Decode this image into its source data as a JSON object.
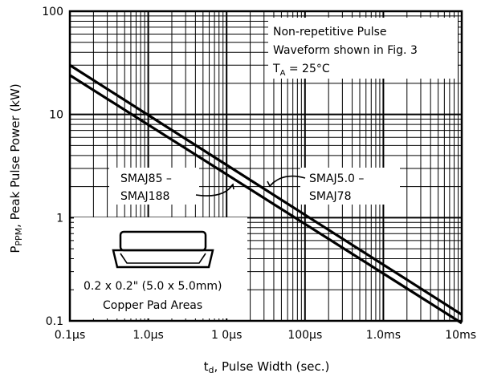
{
  "chart_data": {
    "type": "line",
    "title": "",
    "xlabel_main": "t",
    "xlabel_sub": "d",
    "xlabel_rest": ",   Pulse Width (sec.)",
    "ylabel_main": "P",
    "ylabel_sub": "PPM",
    "ylabel_rest": ",   Peak Pulse Power (kW)",
    "x_scale": "log",
    "y_scale": "log",
    "x_ticks": [
      {
        "value": 1e-07,
        "label": "0.1µs"
      },
      {
        "value": 1e-06,
        "label": "1.0µs"
      },
      {
        "value": 1e-05,
        "label": "1 0µs"
      },
      {
        "value": 0.0001,
        "label": "100µs"
      },
      {
        "value": 0.001,
        "label": "1.0ms"
      },
      {
        "value": 0.01,
        "label": "10ms"
      }
    ],
    "y_ticks": [
      {
        "value": 0.1,
        "label": "0.1"
      },
      {
        "value": 1,
        "label": "1"
      },
      {
        "value": 10,
        "label": "10"
      },
      {
        "value": 100,
        "label": "100"
      }
    ],
    "xlim": [
      1e-07,
      0.01
    ],
    "ylim": [
      0.1,
      100
    ],
    "grid": true,
    "series": [
      {
        "name": "SMAJ5.0 – SMAJ78",
        "x": [
          1e-07,
          0.01
        ],
        "y": [
          30,
          0.115
        ]
      },
      {
        "name": "SMAJ85 – SMAJ188",
        "x": [
          1e-07,
          0.01
        ],
        "y": [
          24,
          0.095
        ]
      }
    ],
    "annotations": {
      "waveform_line1": "Non-repetitive Pulse",
      "waveform_line2": "Waveform shown in Fig. 3",
      "temp_main": "T",
      "temp_sub": "A",
      "temp_rest": " = 25°C",
      "label_upper_line1": "SMAJ5.0 –",
      "label_upper_line2": "SMAJ78",
      "label_lower_line1": "SMAJ85 –",
      "label_lower_line2": "SMAJ188",
      "pad_line1": "0.2 x 0.2\" (5.0 x 5.0mm)",
      "pad_line2": "Copper Pad Areas"
    }
  }
}
